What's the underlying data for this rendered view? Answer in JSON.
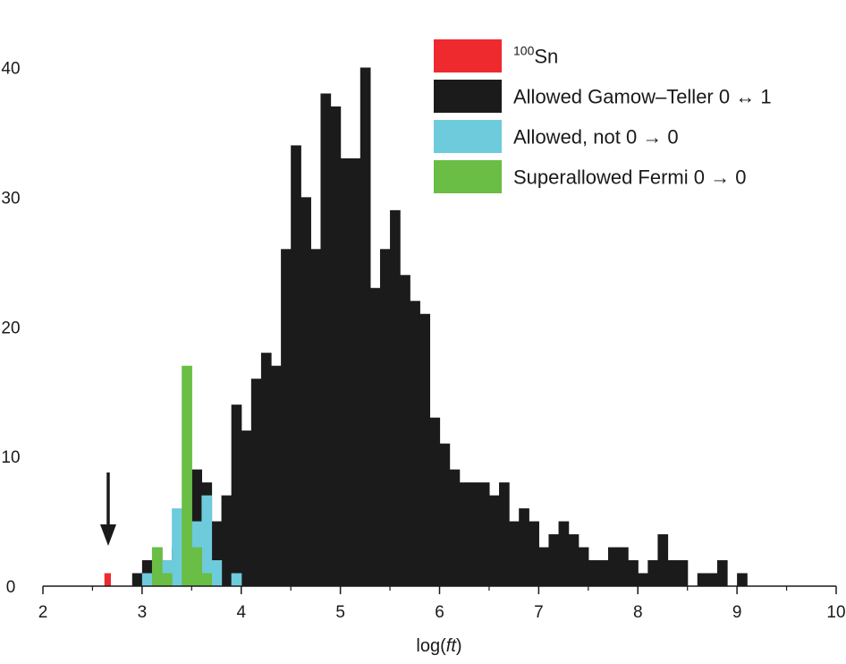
{
  "chart_data": {
    "type": "bar",
    "xlabel_prefix": "log(",
    "xlabel_italic": "ft",
    "xlabel_suffix": ")",
    "ylabel": "",
    "xlim": [
      2,
      10
    ],
    "ylim": [
      0,
      43
    ],
    "bin_width": 0.1,
    "x_ticks": [
      2,
      3,
      4,
      5,
      6,
      7,
      8,
      9,
      10
    ],
    "y_ticks": [
      0,
      10,
      20,
      30,
      40
    ],
    "grid": false,
    "legend_position": "top-right",
    "annotation": {
      "type": "arrow",
      "x": 2.65,
      "points_to": "100Sn"
    },
    "colors": {
      "sn100": "#ee2a2f",
      "gamow_teller": "#1b1b1b",
      "allowed_not00": "#6ecbdc",
      "superallowed": "#6abd45"
    },
    "legend": [
      {
        "key": "sn100",
        "sup": "100",
        "label": "Sn"
      },
      {
        "key": "gamow_teller",
        "sup": "",
        "label": "Allowed Gamow–Teller 0 ↔ 1"
      },
      {
        "key": "allowed_not00",
        "sup": "",
        "label": "Allowed, not 0 → 0"
      },
      {
        "key": "superallowed",
        "sup": "",
        "label": "Superallowed Fermi 0 → 0"
      }
    ],
    "series": [
      {
        "key": "sn100",
        "bins": [
          {
            "x": 2.6,
            "y": 1
          }
        ]
      },
      {
        "key": "gamow_teller",
        "bins": [
          {
            "x": 2.9,
            "y": 1
          },
          {
            "x": 3.0,
            "y": 2
          },
          {
            "x": 3.1,
            "y": 3
          },
          {
            "x": 3.2,
            "y": 2
          },
          {
            "x": 3.3,
            "y": 3
          },
          {
            "x": 3.4,
            "y": 6
          },
          {
            "x": 3.5,
            "y": 9
          },
          {
            "x": 3.6,
            "y": 8
          },
          {
            "x": 3.7,
            "y": 5
          },
          {
            "x": 3.8,
            "y": 7
          },
          {
            "x": 3.9,
            "y": 14
          },
          {
            "x": 4.0,
            "y": 12
          },
          {
            "x": 4.1,
            "y": 16
          },
          {
            "x": 4.2,
            "y": 18
          },
          {
            "x": 4.3,
            "y": 17
          },
          {
            "x": 4.4,
            "y": 26
          },
          {
            "x": 4.5,
            "y": 34
          },
          {
            "x": 4.6,
            "y": 30
          },
          {
            "x": 4.7,
            "y": 26
          },
          {
            "x": 4.8,
            "y": 38
          },
          {
            "x": 4.9,
            "y": 37
          },
          {
            "x": 5.0,
            "y": 33
          },
          {
            "x": 5.1,
            "y": 33
          },
          {
            "x": 5.2,
            "y": 40
          },
          {
            "x": 5.3,
            "y": 23
          },
          {
            "x": 5.4,
            "y": 26
          },
          {
            "x": 5.5,
            "y": 29
          },
          {
            "x": 5.6,
            "y": 24
          },
          {
            "x": 5.7,
            "y": 22
          },
          {
            "x": 5.8,
            "y": 21
          },
          {
            "x": 5.9,
            "y": 13
          },
          {
            "x": 6.0,
            "y": 11
          },
          {
            "x": 6.1,
            "y": 9
          },
          {
            "x": 6.2,
            "y": 8
          },
          {
            "x": 6.3,
            "y": 8
          },
          {
            "x": 6.4,
            "y": 8
          },
          {
            "x": 6.5,
            "y": 7
          },
          {
            "x": 6.6,
            "y": 8
          },
          {
            "x": 6.7,
            "y": 5
          },
          {
            "x": 6.8,
            "y": 6
          },
          {
            "x": 6.9,
            "y": 5
          },
          {
            "x": 7.0,
            "y": 3
          },
          {
            "x": 7.1,
            "y": 4
          },
          {
            "x": 7.2,
            "y": 5
          },
          {
            "x": 7.3,
            "y": 4
          },
          {
            "x": 7.4,
            "y": 3
          },
          {
            "x": 7.5,
            "y": 2
          },
          {
            "x": 7.6,
            "y": 2
          },
          {
            "x": 7.7,
            "y": 3
          },
          {
            "x": 7.8,
            "y": 3
          },
          {
            "x": 7.9,
            "y": 2
          },
          {
            "x": 8.0,
            "y": 1
          },
          {
            "x": 8.1,
            "y": 2
          },
          {
            "x": 8.2,
            "y": 4
          },
          {
            "x": 8.3,
            "y": 2
          },
          {
            "x": 8.4,
            "y": 2
          },
          {
            "x": 8.5,
            "y": 0
          },
          {
            "x": 8.6,
            "y": 1
          },
          {
            "x": 8.7,
            "y": 1
          },
          {
            "x": 8.8,
            "y": 2
          },
          {
            "x": 8.9,
            "y": 0
          },
          {
            "x": 9.0,
            "y": 1
          }
        ]
      },
      {
        "key": "allowed_not00",
        "bins": [
          {
            "x": 3.0,
            "y": 1
          },
          {
            "x": 3.1,
            "y": 2
          },
          {
            "x": 3.2,
            "y": 2
          },
          {
            "x": 3.3,
            "y": 6
          },
          {
            "x": 3.4,
            "y": 3
          },
          {
            "x": 3.5,
            "y": 5
          },
          {
            "x": 3.6,
            "y": 7
          },
          {
            "x": 3.7,
            "y": 2
          },
          {
            "x": 3.8,
            "y": 0
          },
          {
            "x": 3.9,
            "y": 1
          }
        ]
      },
      {
        "key": "superallowed",
        "bins": [
          {
            "x": 3.1,
            "y": 3
          },
          {
            "x": 3.2,
            "y": 1
          },
          {
            "x": 3.4,
            "y": 17
          },
          {
            "x": 3.5,
            "y": 3
          },
          {
            "x": 3.6,
            "y": 1
          }
        ]
      }
    ]
  }
}
